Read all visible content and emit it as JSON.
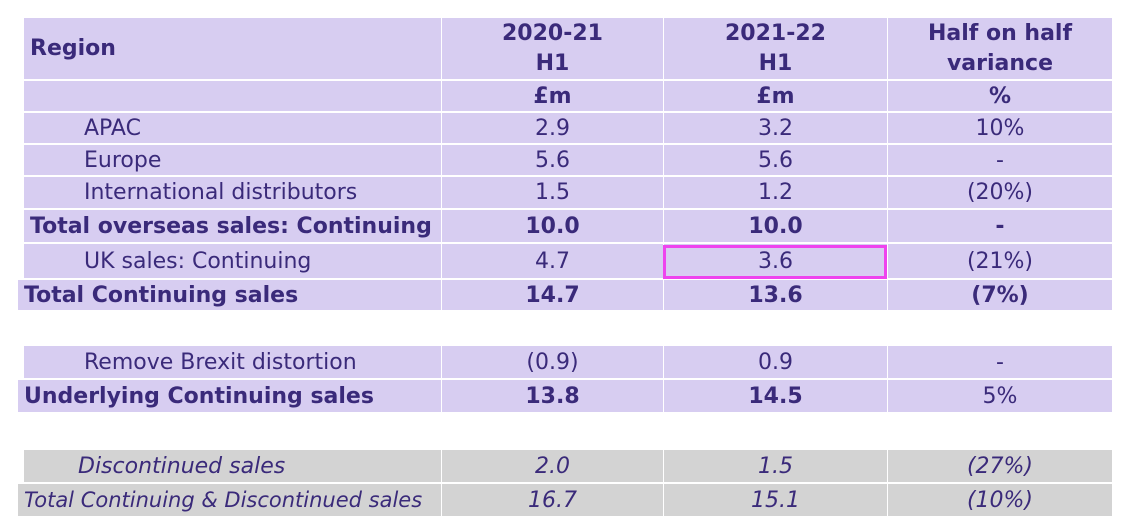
{
  "header": {
    "region": "Region",
    "col1_line1": "2020-21",
    "col1_line2": "H1",
    "col2_line1": "2021-22",
    "col2_line2": "H1",
    "col3_line1": "Half on half",
    "col3_line2": "variance",
    "unit1": "£m",
    "unit2": "£m",
    "unit3": "%"
  },
  "rows": [
    {
      "label": "APAC",
      "v1": "2.9",
      "v2": "3.2",
      "v3": "10%"
    },
    {
      "label": "Europe",
      "v1": "5.6",
      "v2": "5.6",
      "v3": "-"
    },
    {
      "label": "International distributors",
      "v1": "1.5",
      "v2": "1.2",
      "v3": "(20%)"
    },
    {
      "label": "Total overseas sales: Continuing",
      "v1": "10.0",
      "v2": "10.0",
      "v3": "-"
    },
    {
      "label": "UK sales: Continuing",
      "v1": "4.7",
      "v2": "3.6",
      "v3": "(21%)"
    },
    {
      "label": "Total Continuing sales",
      "v1": "14.7",
      "v2": "13.6",
      "v3": "(7%)"
    },
    {
      "label": "Remove Brexit distortion",
      "v1": "(0.9)",
      "v2": "0.9",
      "v3": "-"
    },
    {
      "label": "Underlying Continuing sales",
      "v1": "13.8",
      "v2": "14.5",
      "v3": "5%"
    },
    {
      "label": "Discontinued sales",
      "v1": "2.0",
      "v2": "1.5",
      "v3": "(27%)"
    },
    {
      "label": "Total Continuing & Discontinued sales",
      "v1": "16.7",
      "v2": "15.1",
      "v3": "(10%)"
    }
  ],
  "colors": {
    "purple_fill": "#d7cdf1",
    "grey_fill": "#d3d3d3",
    "text": "#3a2a7a",
    "highlight": "#ee44ee"
  }
}
